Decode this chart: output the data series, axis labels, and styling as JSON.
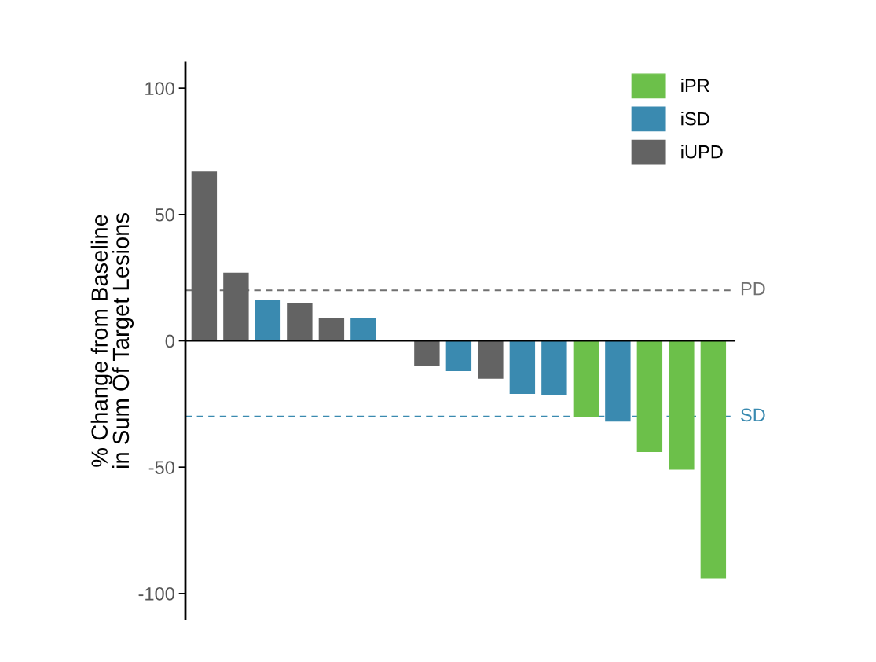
{
  "chart_data": {
    "type": "bar",
    "ylabel": "% Change from Baseline\nin Sum Of Target Lesions",
    "categories": [
      null,
      null,
      null,
      null,
      null,
      null,
      null,
      null,
      null,
      null,
      null,
      null,
      null,
      null,
      null,
      null,
      null
    ],
    "series": [
      {
        "name": "iPR",
        "color": "#6cc04a",
        "values": [
          null,
          null,
          null,
          null,
          null,
          null,
          null,
          null,
          null,
          null,
          null,
          null,
          -30,
          null,
          -44,
          -51,
          -94
        ]
      },
      {
        "name": "iSD",
        "color": "#3a8ab0",
        "values": [
          null,
          null,
          16,
          null,
          null,
          9,
          null,
          null,
          -12,
          null,
          -21,
          -21.5,
          null,
          -32,
          null,
          null,
          null
        ]
      },
      {
        "name": "iUPD",
        "color": "#636363",
        "values": [
          67,
          27,
          null,
          15,
          9,
          null,
          0,
          -10,
          null,
          -15,
          null,
          null,
          null,
          null,
          null,
          null,
          null
        ]
      }
    ],
    "ylim": [
      -110,
      110
    ],
    "yticks": [
      {
        "value": -100,
        "label": "-100"
      },
      {
        "value": -50,
        "label": "-50"
      },
      0,
      50,
      100
    ],
    "ref_lines": [
      {
        "axis": "y",
        "value": 20,
        "label": "PD",
        "color": "#707070",
        "line_style": "dashed"
      },
      {
        "axis": "y",
        "value": -30,
        "label": "SD",
        "color": "#3a8ab0",
        "line_style": "dashed"
      }
    ],
    "legend": "top right",
    "tick_labels": "y"
  }
}
